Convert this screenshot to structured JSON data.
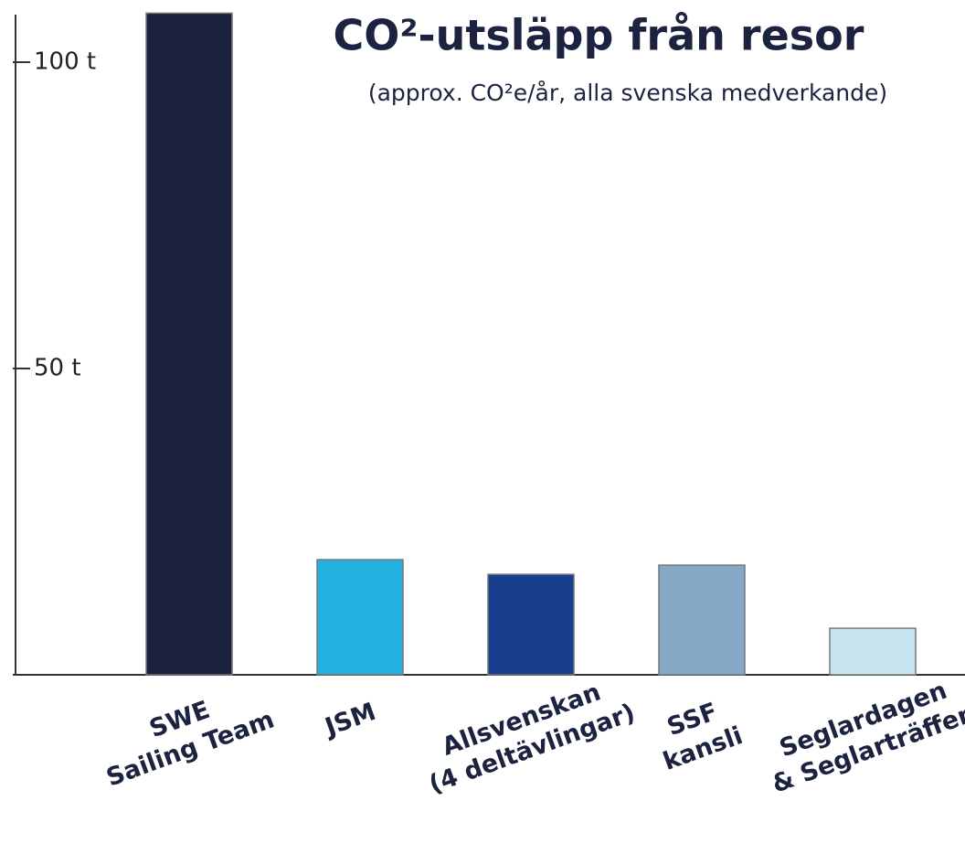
{
  "chart_data": {
    "type": "bar",
    "title": "CO²-utsläpp från resor",
    "subtitle": "(approx. CO²e/år, alla svenska medverkande)",
    "categories": [
      [
        "SWE",
        "Sailing Team"
      ],
      [
        "JSM"
      ],
      [
        "Allsvenskan",
        "(4 deltävlingar)"
      ],
      [
        "SSF",
        "kansli"
      ],
      [
        "Seglardagen",
        "& Seglarträffen"
      ]
    ],
    "values": [
      108,
      18.8,
      16.4,
      17.9,
      7.6
    ],
    "colors": [
      "#1b2340",
      "#22b0de",
      "#173f8e",
      "#84a8c6",
      "#c6e4f0"
    ],
    "ylim": [
      0,
      110
    ],
    "yticks": [
      {
        "value": 100,
        "label": "100 t"
      },
      {
        "value": 50,
        "label": "50 t"
      }
    ],
    "grid": false
  }
}
